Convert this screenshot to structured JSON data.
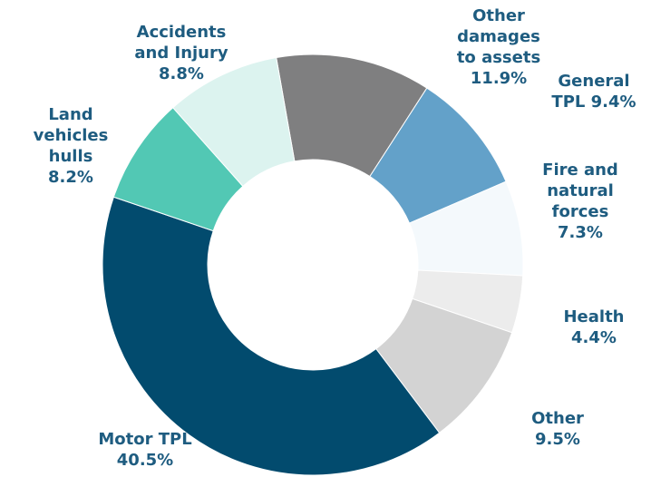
{
  "chart_data": {
    "type": "donut",
    "categories": [
      "Other damages to assets",
      "General TPL",
      "Fire and natural forces",
      "Health",
      "Other",
      "Motor TPL",
      "Land vehicles hulls",
      "Accidents and Injury"
    ],
    "values": [
      11.9,
      9.4,
      7.3,
      4.4,
      9.5,
      40.5,
      8.2,
      8.8
    ],
    "value_labels": [
      "11.9%",
      "9.4%",
      "7.3%",
      "4.4%",
      "9.5%",
      "40.5%",
      "8.2%",
      "8.8%"
    ],
    "colors": [
      "#7f7f80",
      "#63a1c9",
      "#f4f9fc",
      "#ececec",
      "#d3d3d3",
      "#024b6e",
      "#52c8b4",
      "#dcf3ef"
    ]
  }
}
